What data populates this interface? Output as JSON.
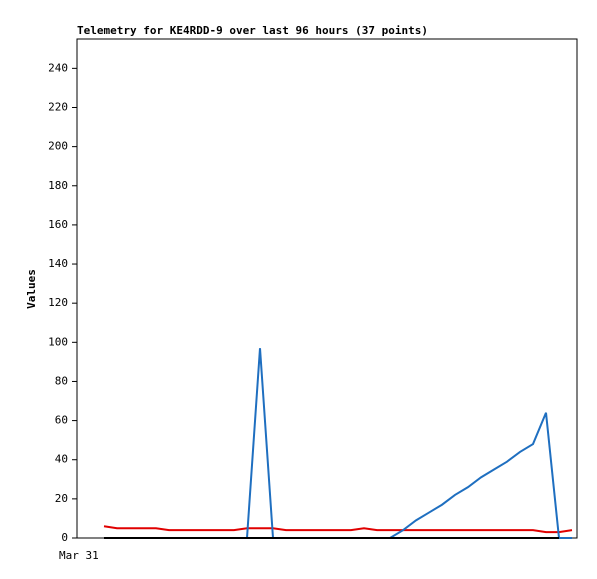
{
  "chart_data": {
    "type": "line",
    "title": "Telemetry for KE4RDD-9 over last 96 hours (37 points)",
    "y_label": "Values",
    "categories": [
      "Mar 31",
      null,
      null,
      null,
      null,
      null,
      null,
      null,
      null,
      null,
      null,
      null,
      null,
      null,
      null,
      null,
      null,
      null,
      null,
      null,
      null,
      null,
      null,
      null,
      null,
      null,
      null,
      null,
      null,
      null,
      null,
      null,
      null,
      null,
      null,
      null,
      null
    ],
    "series": [
      {
        "color": "#e00000",
        "values": [
          6,
          5,
          5,
          5,
          5,
          4,
          4,
          4,
          4,
          4,
          4,
          5,
          5,
          5,
          4,
          4,
          4,
          4,
          4,
          4,
          5,
          4,
          4,
          4,
          4,
          4,
          4,
          4,
          4,
          4,
          4,
          4,
          4,
          4,
          3,
          3,
          4
        ]
      },
      {
        "color": "#1f6fc0",
        "values": [
          0,
          0,
          0,
          0,
          0,
          0,
          0,
          0,
          0,
          0,
          0,
          0,
          97,
          0,
          0,
          0,
          0,
          0,
          0,
          0,
          0,
          0,
          0,
          4,
          9,
          13,
          17,
          22,
          26,
          31,
          35,
          39,
          44,
          48,
          64,
          0,
          0
        ]
      },
      {
        "color": "#000000",
        "values": [
          0,
          0,
          0,
          0,
          0,
          0,
          0,
          0,
          0,
          0,
          0,
          0,
          0,
          0,
          0,
          0,
          0,
          0,
          0,
          0,
          0,
          0,
          0,
          0,
          0,
          0,
          0,
          0,
          0,
          0,
          0,
          0,
          0,
          0,
          0,
          0,
          null
        ]
      }
    ],
    "ylim": [
      0,
      255
    ],
    "yticks": [
      0,
      20,
      40,
      60,
      80,
      100,
      120,
      140,
      160,
      180,
      200,
      220,
      240
    ]
  }
}
